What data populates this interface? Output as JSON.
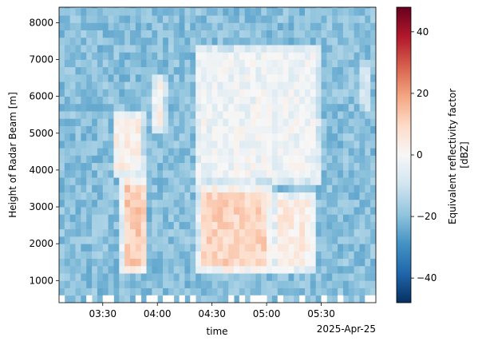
{
  "chart_data": {
    "type": "heatmap",
    "title": "",
    "xlabel": "time",
    "x_offset_label": "2025-Apr-25",
    "ylabel": "Height of Radar Beam [m]",
    "x_tick_labels": [
      "03:30",
      "04:00",
      "04:30",
      "05:00",
      "05:30"
    ],
    "x_tick_times": [
      "03:30",
      "04:00",
      "04:30",
      "05:00",
      "05:30"
    ],
    "xlim": [
      "03:06",
      "06:00"
    ],
    "y_ticks": [
      1000,
      2000,
      3000,
      4000,
      5000,
      6000,
      7000,
      8000
    ],
    "ylim": [
      400,
      8420
    ],
    "colorbar": {
      "label": "Equivalent reflectivity factor\n[dBZ]",
      "label_line1": "Equivalent reflectivity factor",
      "label_line2": "[dBZ]",
      "ticks": [
        -40,
        -20,
        0,
        20,
        40
      ],
      "range": [
        -48,
        48
      ],
      "colormap": "RdBu_r"
    },
    "grid": false,
    "time_resolution_min": 3,
    "height_resolution_m": 200,
    "echo_regions": [
      {
        "time_start": "03:40",
        "time_end": "03:55",
        "height_bottom": 1200,
        "height_top": 3800,
        "dbz": 12
      },
      {
        "time_start": "03:35",
        "time_end": "03:53",
        "height_bottom": 3800,
        "height_top": 5600,
        "dbz": 3
      },
      {
        "time_start": "03:57",
        "time_end": "04:05",
        "height_bottom": 5000,
        "height_top": 6600,
        "dbz": 2
      },
      {
        "time_start": "04:22",
        "time_end": "05:03",
        "height_bottom": 1200,
        "height_top": 3600,
        "dbz": 10
      },
      {
        "time_start": "05:03",
        "time_end": "05:27",
        "height_bottom": 1200,
        "height_top": 3400,
        "dbz": 4
      },
      {
        "time_start": "04:20",
        "time_end": "05:30",
        "height_bottom": 3600,
        "height_top": 7400,
        "dbz": -2
      },
      {
        "time_start": "05:50",
        "time_end": "05:58",
        "height_bottom": 5600,
        "height_top": 7000,
        "dbz": -6
      }
    ],
    "background_dbz": -20
  }
}
